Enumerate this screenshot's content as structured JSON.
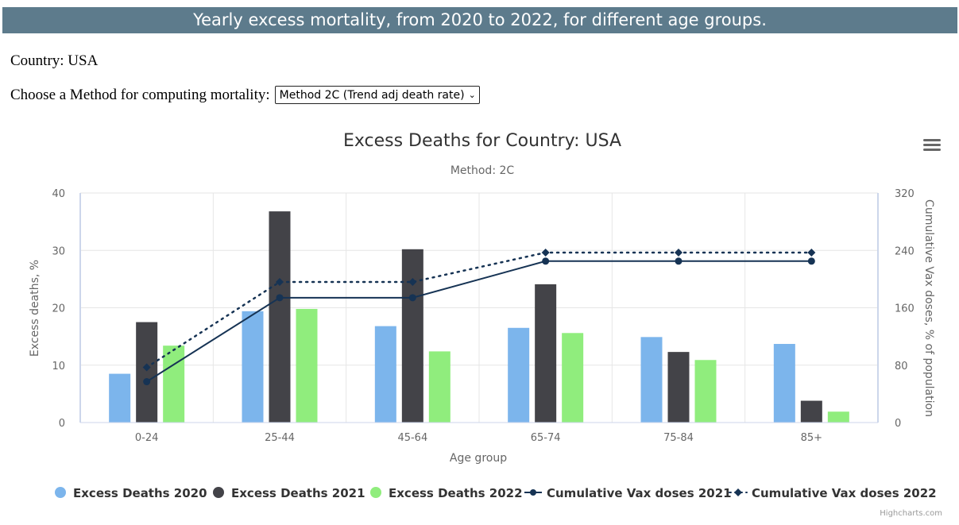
{
  "page": {
    "banner": "Yearly excess mortality, from 2020 to 2022, for different age groups.",
    "country_line": "Country: USA",
    "method_label": "Choose a Method for computing mortality:",
    "method_selected": "Method 2C (Trend adj death rate)"
  },
  "chart_data": {
    "type": "bar",
    "title": "Excess Deaths for Country: USA",
    "subtitle": "Method: 2C",
    "xlabel": "Age group",
    "ylabel": "Excess deaths, %",
    "ylabel_right": "Cumulative Vax doses, % of population",
    "categories": [
      "0-24",
      "25-44",
      "45-64",
      "65-74",
      "75-84",
      "85+"
    ],
    "ylim": [
      0,
      40
    ],
    "ylim_right": [
      0,
      320
    ],
    "yticks": [
      0,
      10,
      20,
      30,
      40
    ],
    "yticks_right": [
      0,
      80,
      160,
      240,
      320
    ],
    "grid": true,
    "legend_position": "bottom",
    "credits": "Highcharts.com",
    "series": [
      {
        "name": "Excess Deaths 2020",
        "kind": "column",
        "axis": "left",
        "color": "#7cb5ec",
        "values": [
          8.5,
          19.4,
          16.8,
          16.5,
          14.9,
          13.7
        ]
      },
      {
        "name": "Excess Deaths 2021",
        "kind": "column",
        "axis": "left",
        "color": "#434348",
        "values": [
          17.5,
          36.8,
          30.2,
          24.1,
          12.3,
          3.8
        ]
      },
      {
        "name": "Excess Deaths 2022",
        "kind": "column",
        "axis": "left",
        "color": "#90ed7d",
        "values": [
          13.4,
          19.8,
          12.4,
          15.6,
          10.9,
          1.9
        ]
      },
      {
        "name": "Cumulative Vax doses 2021",
        "kind": "line",
        "axis": "right",
        "color": "#163354",
        "marker": "circle",
        "dash": "solid",
        "values": [
          57,
          174,
          174,
          225,
          225,
          225
        ]
      },
      {
        "name": "Cumulative Vax doses 2022",
        "kind": "line",
        "axis": "right",
        "color": "#163354",
        "marker": "diamond",
        "dash": "dot",
        "values": [
          77,
          196,
          196,
          237,
          237,
          237
        ]
      }
    ]
  }
}
